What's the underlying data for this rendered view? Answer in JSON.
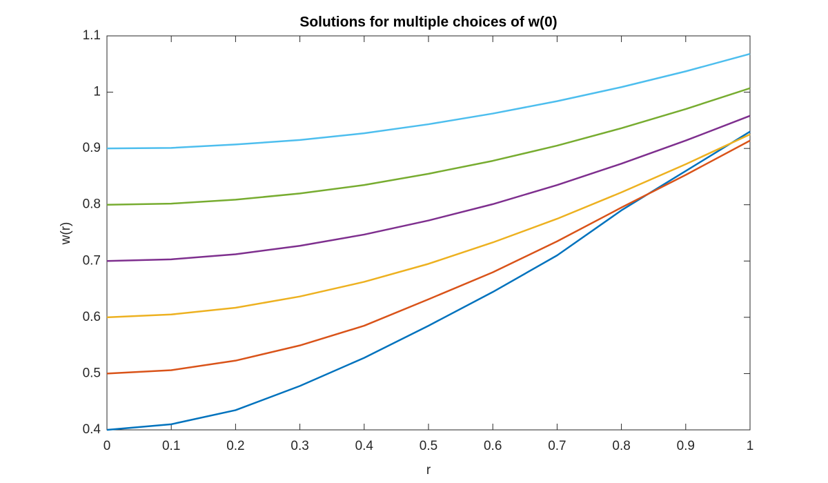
{
  "chart_data": {
    "type": "line",
    "title": "Solutions for multiple choices of w(0)",
    "xlabel": "r",
    "ylabel": "w(r)",
    "x": [
      0,
      0.1,
      0.2,
      0.3,
      0.4,
      0.5,
      0.6,
      0.7,
      0.8,
      0.9,
      1
    ],
    "series": [
      {
        "color": "#0072BD",
        "values": [
          0.4,
          0.41,
          0.435,
          0.478,
          0.528,
          0.585,
          0.645,
          0.71,
          0.79,
          0.86,
          0.93
        ]
      },
      {
        "color": "#D95319",
        "values": [
          0.5,
          0.506,
          0.523,
          0.55,
          0.585,
          0.632,
          0.68,
          0.735,
          0.795,
          0.853,
          0.914
        ]
      },
      {
        "color": "#EDB120",
        "values": [
          0.6,
          0.605,
          0.617,
          0.637,
          0.663,
          0.695,
          0.733,
          0.775,
          0.822,
          0.872,
          0.925
        ]
      },
      {
        "color": "#7E2F8E",
        "values": [
          0.7,
          0.703,
          0.712,
          0.727,
          0.747,
          0.772,
          0.801,
          0.835,
          0.873,
          0.914,
          0.958
        ]
      },
      {
        "color": "#77AC30",
        "values": [
          0.8,
          0.802,
          0.809,
          0.82,
          0.835,
          0.855,
          0.878,
          0.905,
          0.936,
          0.97,
          1.007
        ]
      },
      {
        "color": "#4DBEEE",
        "values": [
          0.9,
          0.901,
          0.907,
          0.915,
          0.927,
          0.943,
          0.962,
          0.984,
          1.009,
          1.037,
          1.068
        ]
      }
    ],
    "xlim": [
      0,
      1
    ],
    "xticks": [
      0,
      0.1,
      0.2,
      0.3,
      0.4,
      0.5,
      0.6,
      0.7,
      0.8,
      0.9,
      1
    ],
    "ylim": [
      0.4,
      1.1
    ],
    "yticks": [
      0.4,
      0.5,
      0.6,
      0.7,
      0.8,
      0.9,
      1,
      1.1
    ],
    "grid": false
  }
}
